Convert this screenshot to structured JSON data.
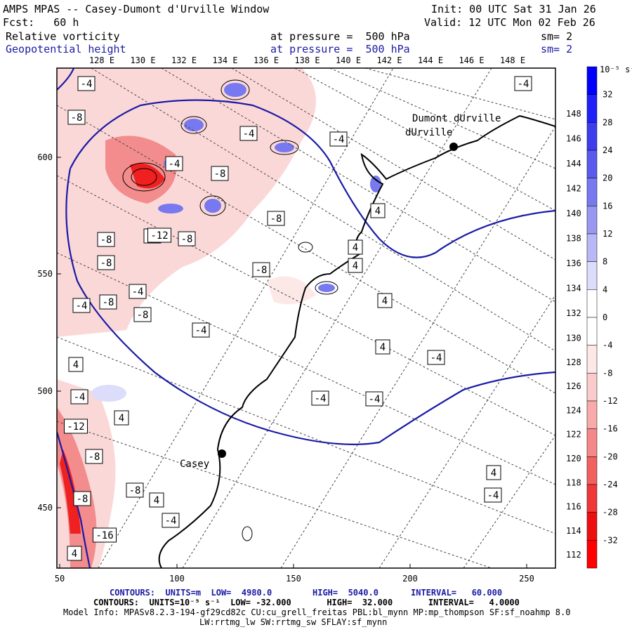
{
  "header": {
    "title": "AMPS MPAS -- Casey-Dumont d'Urville Window",
    "init": "Init: 00 UTC Sat 31 Jan 26",
    "fcst": "Fcst:   60 h",
    "valid": "Valid: 12 UTC Mon 02 Feb 26",
    "field1": "Relative vorticity",
    "field1_level": "at pressure =  500 hPa",
    "field1_sm": "sm= 2",
    "field2": "Geopotential height",
    "field2_level": "at pressure =  500 hPa",
    "field2_sm": "sm= 2"
  },
  "colors": {
    "contour_blue": "#1a1aa6",
    "text_blue": "#1a1aa6",
    "neg_strong": "#ff0000",
    "neg_light": "#fde4e4",
    "pos_light": "#dde2ff",
    "pos_strong": "#0000ff"
  },
  "map": {
    "x_ticks": [
      "50",
      "100",
      "150",
      "200",
      "250"
    ],
    "y_ticks": [
      "600",
      "550",
      "500",
      "450"
    ],
    "lon_top": [
      "128 E",
      "130 E",
      "132 E",
      "134 E",
      "136 E",
      "138 E",
      "140 E",
      "142 E",
      "144 E",
      "146 E",
      "148 E"
    ],
    "lat_right": [
      "148 E",
      "146 E",
      "144 E",
      "142 E",
      "140 E",
      "138 E",
      "136 E",
      "134 E",
      "132 E",
      "130 E",
      "128 E",
      "126 E",
      "124 E",
      "122 E",
      "120 E",
      "118 E",
      "116 E",
      "114 E",
      "112 E"
    ],
    "stations": [
      {
        "name": "Dumont\ndUrville"
      },
      {
        "name": "Casey"
      }
    ],
    "contour_labels": [
      "-4",
      "-8",
      "-4",
      "-4",
      "-8",
      "-4",
      "-8",
      "-4",
      "-12",
      "-8",
      "-8",
      "-8",
      "-4",
      "-8",
      "-8",
      "-4",
      "-8",
      "-8",
      "-4",
      "4",
      "4",
      "4",
      "-4",
      "4",
      "-4",
      "-4",
      "4",
      "-12",
      "4",
      "-8",
      "-8",
      "4",
      "-8",
      "-4",
      "-16",
      "-4",
      "4",
      "4",
      "-4",
      "4",
      "-4"
    ]
  },
  "colorbar": {
    "unit_label": "10⁻⁵ s⁻¹",
    "ticks": [
      "32",
      "28",
      "24",
      "20",
      "16",
      "12",
      "8",
      "4",
      "0",
      "-4",
      "-8",
      "-12",
      "-16",
      "-20",
      "-24",
      "-28",
      "-32"
    ],
    "colors": [
      "#0000ff",
      "#2020f8",
      "#3d3df0",
      "#5a5aee",
      "#7878f0",
      "#9898f2",
      "#b8b8f6",
      "#dcdcfb",
      "#ffffff",
      "#ffffff",
      "#fde8e8",
      "#fbcaca",
      "#f8aaaa",
      "#f58888",
      "#f26060",
      "#f03838",
      "#ee1010",
      "#ff0000"
    ]
  },
  "footer": {
    "line1_a": "CONTOURS:  UNITS=m  LOW=  4980.0",
    "line1_b": "HIGH=  5040.0",
    "line1_c": "INTERVAL=   60.000",
    "line2": "CONTOURS:  UNITS=10⁻⁵ s⁻¹  LOW= -32.000       HIGH=  32.000       INTERVAL=   4.0000",
    "line3": "Model Info: MPASv8.2.3-194-gf29cd82c CU:cu_grell_freitas PBL:bl_mynn MP:mp_thompson SF:sf_noahmp 8.0",
    "line4": "LW:rrtmg_lw SW:rrtmg_sw SFLAY:sf_mynn"
  }
}
